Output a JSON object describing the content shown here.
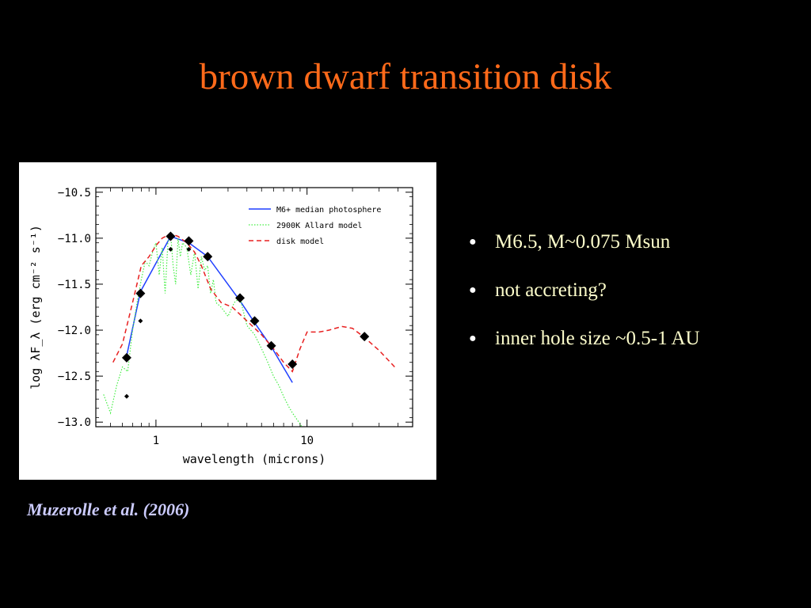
{
  "slide": {
    "title": "brown dwarf transition disk",
    "bullets": [
      "M6.5, M~0.075 Msun",
      "not accreting?",
      "inner hole size ~0.5-1 AU"
    ],
    "citation": "Muzerolle et al. (2006)"
  },
  "colors": {
    "background": "#000000",
    "title": "#ff6a1a",
    "bullet_text": "#ffffcc",
    "citation": "#ccccff",
    "photosphere": "#1f3fff",
    "allard": "#44ee44",
    "disk": "#e82020"
  },
  "chart_data": {
    "type": "line",
    "xlabel": "wavelength (microns)",
    "ylabel": "log λF_λ (erg cm⁻² s⁻¹)",
    "xscale": "log",
    "xlim": [
      0.4,
      50
    ],
    "ylim": [
      -13.05,
      -10.45
    ],
    "xticks": [
      1,
      10
    ],
    "yticks": [
      -10.5,
      -11.0,
      -11.5,
      -12.0,
      -12.5,
      -13.0
    ],
    "ytick_labels": [
      "−10.5",
      "−11.0",
      "−11.5",
      "−12.0",
      "−12.5",
      "−13.0"
    ],
    "legend_position": "top-right",
    "series": [
      {
        "name": "M6+ median photosphere",
        "style": "solid",
        "x": [
          0.64,
          0.79,
          1.25,
          1.65,
          2.2,
          3.6,
          4.5,
          5.8,
          8.0
        ],
        "y": [
          -12.28,
          -11.58,
          -10.98,
          -11.05,
          -11.2,
          -11.68,
          -11.92,
          -12.18,
          -12.57
        ]
      },
      {
        "name": "2900K Allard model",
        "style": "dotted",
        "x": [
          0.45,
          0.5,
          0.55,
          0.6,
          0.65,
          0.7,
          0.75,
          0.8,
          0.85,
          0.9,
          0.95,
          1.0,
          1.05,
          1.1,
          1.15,
          1.2,
          1.25,
          1.3,
          1.35,
          1.4,
          1.45,
          1.5,
          1.6,
          1.7,
          1.8,
          1.9,
          2.0,
          2.1,
          2.2,
          2.3,
          2.4,
          2.5,
          2.7,
          3.0,
          3.3,
          3.6,
          4.0,
          4.5,
          5.0,
          5.5,
          6.0,
          6.5,
          7.0,
          7.5,
          8.0,
          9.0,
          10.0
        ],
        "y": [
          -12.7,
          -12.9,
          -12.6,
          -12.4,
          -12.45,
          -12.0,
          -11.7,
          -11.45,
          -11.25,
          -11.3,
          -11.15,
          -11.05,
          -11.4,
          -11.1,
          -11.6,
          -11.05,
          -10.95,
          -11.3,
          -11.5,
          -11.0,
          -11.2,
          -11.05,
          -11.1,
          -11.4,
          -11.15,
          -11.55,
          -11.2,
          -11.35,
          -11.3,
          -11.6,
          -11.45,
          -11.7,
          -11.75,
          -11.85,
          -11.7,
          -11.65,
          -11.95,
          -12.05,
          -12.2,
          -12.35,
          -12.5,
          -12.6,
          -12.72,
          -12.82,
          -12.9,
          -13.02,
          -13.15
        ]
      },
      {
        "name": "disk model",
        "style": "dashed",
        "x": [
          0.52,
          0.6,
          0.7,
          0.8,
          0.9,
          1.0,
          1.1,
          1.25,
          1.4,
          1.6,
          1.8,
          2.0,
          2.3,
          2.7,
          3.2,
          4.0,
          5.0,
          6.0,
          7.0,
          8.0,
          9.0,
          10.0,
          12.0,
          14.0,
          17.0,
          20.0,
          24.0,
          30.0,
          38.0
        ],
        "y": [
          -12.35,
          -12.15,
          -11.7,
          -11.3,
          -11.2,
          -11.08,
          -11.0,
          -10.95,
          -10.98,
          -11.05,
          -11.15,
          -11.3,
          -11.55,
          -11.7,
          -11.75,
          -11.9,
          -12.05,
          -12.2,
          -12.35,
          -12.45,
          -12.2,
          -12.02,
          -12.02,
          -12.0,
          -11.96,
          -11.98,
          -12.08,
          -12.22,
          -12.4
        ]
      }
    ],
    "observed_points": {
      "x": [
        0.64,
        0.79,
        1.25,
        1.65,
        2.2,
        3.6,
        4.5,
        5.8,
        8.0,
        24.0
      ],
      "y": [
        -12.3,
        -11.6,
        -10.98,
        -11.03,
        -11.2,
        -11.65,
        -11.9,
        -12.17,
        -12.37,
        -12.07
      ]
    },
    "secondary_points": {
      "x": [
        0.64,
        0.79,
        1.25,
        1.65
      ],
      "y": [
        -12.72,
        -11.9,
        -11.12,
        -11.12
      ]
    }
  }
}
